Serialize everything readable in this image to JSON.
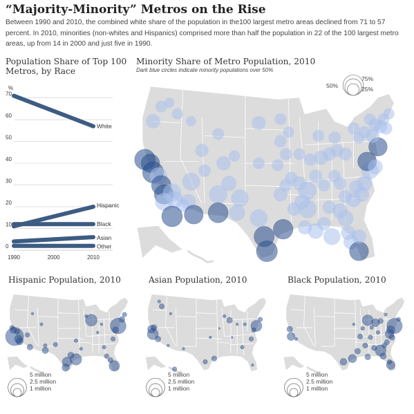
{
  "header": {
    "title": "“Majority-Minority” Metros on the Rise",
    "subtitle": "Between 1990 and 2010, the combined white share of the population in the100 largest metro areas declined from 71 to 57 percent. In 2010, minorities (non-whites and Hispanics) comprised more than half the population in 22 of the 100 largest metro areas, up from 14 in 2000 and just five in 1990."
  },
  "colors": {
    "series": "#3d5c82",
    "bubble": "#2b5090",
    "bubble_light": "#a9c1ec",
    "map": "#dcdcdc",
    "grid": "#cccccc"
  },
  "chart_data": [
    {
      "type": "line",
      "title": "Population Share of Top 100 Metros, by Race",
      "ylabel": "%",
      "xlabel": "",
      "x": [
        1990,
        2010
      ],
      "x_ticks": [
        "1990",
        "2000",
        "2010"
      ],
      "y_ticks": [
        "0",
        "10",
        "20",
        "30",
        "40",
        "50",
        "60",
        "70"
      ],
      "ylim": [
        0,
        75
      ],
      "grid": true,
      "series": [
        {
          "name": "White",
          "values": [
            71,
            57
          ]
        },
        {
          "name": "Hispanic",
          "values": [
            11,
            20
          ]
        },
        {
          "name": "Black",
          "values": [
            12,
            12
          ]
        },
        {
          "name": "Asian",
          "values": [
            4,
            6
          ]
        },
        {
          "name": "Other",
          "values": [
            2,
            2
          ]
        }
      ]
    },
    {
      "type": "scatter",
      "title": "Minority Share of Metro Population, 2010",
      "note": "Dark blue circles indicate minority populations over 50%",
      "legend": {
        "labels": [
          "75%",
          "50%",
          "25%"
        ],
        "values": [
          75,
          50,
          25
        ],
        "placement": "top-right"
      }
    },
    {
      "type": "scatter",
      "title": "Hispanic Population, 2010",
      "legend": {
        "labels": [
          "5 million",
          "2.5 million",
          "1 million"
        ],
        "values": [
          5,
          2.5,
          1
        ],
        "placement": "bottom-left"
      }
    },
    {
      "type": "scatter",
      "title": "Asian Population, 2010",
      "legend": {
        "labels": [
          "5 million",
          "2.5 million",
          "1 million"
        ],
        "values": [
          5,
          2.5,
          1
        ],
        "placement": "bottom-left"
      }
    },
    {
      "type": "scatter",
      "title": "Black Population, 2010",
      "legend": {
        "labels": [
          "5 million",
          "2.5 million",
          "1 million"
        ],
        "values": [
          5,
          2.5,
          1
        ],
        "placement": "bottom-left"
      }
    }
  ]
}
